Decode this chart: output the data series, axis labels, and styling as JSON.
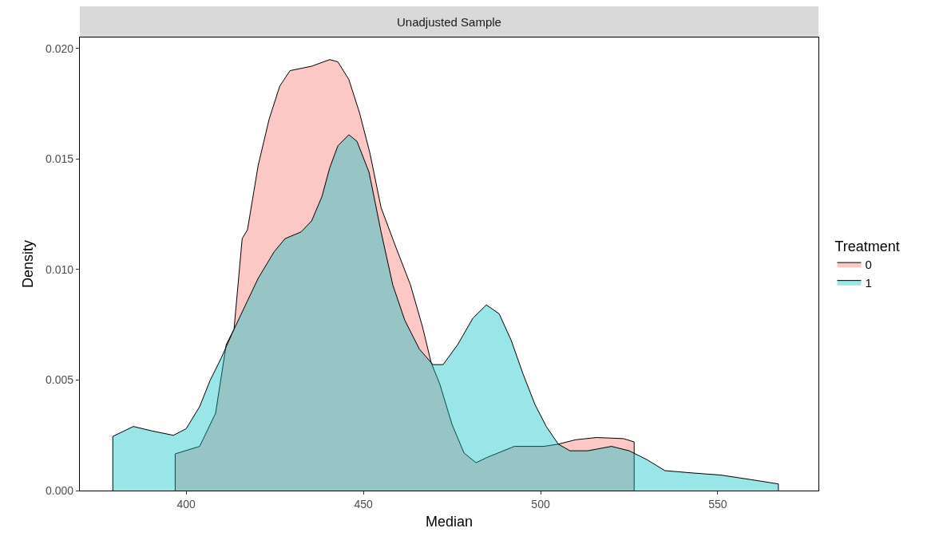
{
  "chart_data": {
    "type": "area",
    "title": "Unadjusted Sample",
    "xlabel": "Median",
    "ylabel": "Density",
    "legend_title": "Treatment",
    "legend": "right",
    "grid": false,
    "xlim": [
      370,
      578.4
    ],
    "ylim": [
      0,
      0.0205
    ],
    "xticks": [
      400,
      450,
      500,
      550
    ],
    "yticks": [
      {
        "value": 0,
        "label": "0.000"
      },
      {
        "value": 0.005,
        "label": "0.005"
      },
      {
        "value": 0.01,
        "label": "0.010"
      },
      {
        "value": 0.015,
        "label": "0.015"
      },
      {
        "value": 0.02,
        "label": "0.020"
      }
    ],
    "series": [
      {
        "name": "0",
        "color": "#f8766d",
        "x": [
          396.9,
          396.9,
          403.8,
          408.3,
          411.3,
          413.5,
          415.8,
          417.3,
          420.3,
          423.4,
          426.4,
          429.3,
          435.4,
          440.5,
          442.8,
          445.9,
          448.9,
          451.8,
          455.0,
          459.2,
          463.3,
          466.7,
          469.1,
          471.6,
          475.0,
          478.4,
          481.8,
          484.9,
          492.6,
          500.9,
          505.0,
          509.9,
          515.8,
          523.4,
          526.4,
          526.4
        ],
        "values": [
          0,
          0.00166,
          0.002,
          0.0035,
          0.0066,
          0.0073,
          0.0114,
          0.0118,
          0.0147,
          0.0168,
          0.0183,
          0.019,
          0.0192,
          0.0195,
          0.0194,
          0.0186,
          0.0171,
          0.0153,
          0.0128,
          0.011,
          0.0093,
          0.0074,
          0.0058,
          0.0048,
          0.003,
          0.0017,
          0.00126,
          0.0015,
          0.002,
          0.002,
          0.0021,
          0.0023,
          0.0024,
          0.00235,
          0.0022,
          0
        ]
      },
      {
        "name": "1",
        "color": "#00bfc4",
        "x": [
          379.3,
          379.3,
          385.1,
          390.3,
          396.4,
          400,
          403.8,
          406.8,
          409.9,
          413.5,
          420.3,
          424.8,
          427.9,
          432.4,
          435.4,
          438.3,
          440.5,
          442.8,
          445.9,
          448.2,
          451.6,
          455.0,
          458.3,
          461.7,
          465.8,
          469.6,
          472.5,
          476.6,
          480.9,
          484.7,
          488.3,
          491.7,
          495.0,
          498.4,
          501.6,
          505.0,
          508.3,
          513.3,
          520.0,
          525.0,
          530.0,
          535.1,
          542.6,
          550.9,
          559.2,
          567.1,
          567.1
        ],
        "values": [
          0,
          0.00245,
          0.0029,
          0.0027,
          0.0025,
          0.0028,
          0.0038,
          0.005,
          0.006,
          0.0073,
          0.0096,
          0.0108,
          0.0114,
          0.0117,
          0.0122,
          0.0133,
          0.0146,
          0.0156,
          0.0161,
          0.0158,
          0.0144,
          0.0117,
          0.0093,
          0.0077,
          0.0064,
          0.0057,
          0.0057,
          0.0066,
          0.0078,
          0.0084,
          0.008,
          0.0068,
          0.0053,
          0.0039,
          0.0029,
          0.0021,
          0.0018,
          0.0018,
          0.002,
          0.0018,
          0.0014,
          0.0009,
          0.0008,
          0.0007,
          0.0005,
          0.0003,
          0
        ]
      }
    ]
  }
}
